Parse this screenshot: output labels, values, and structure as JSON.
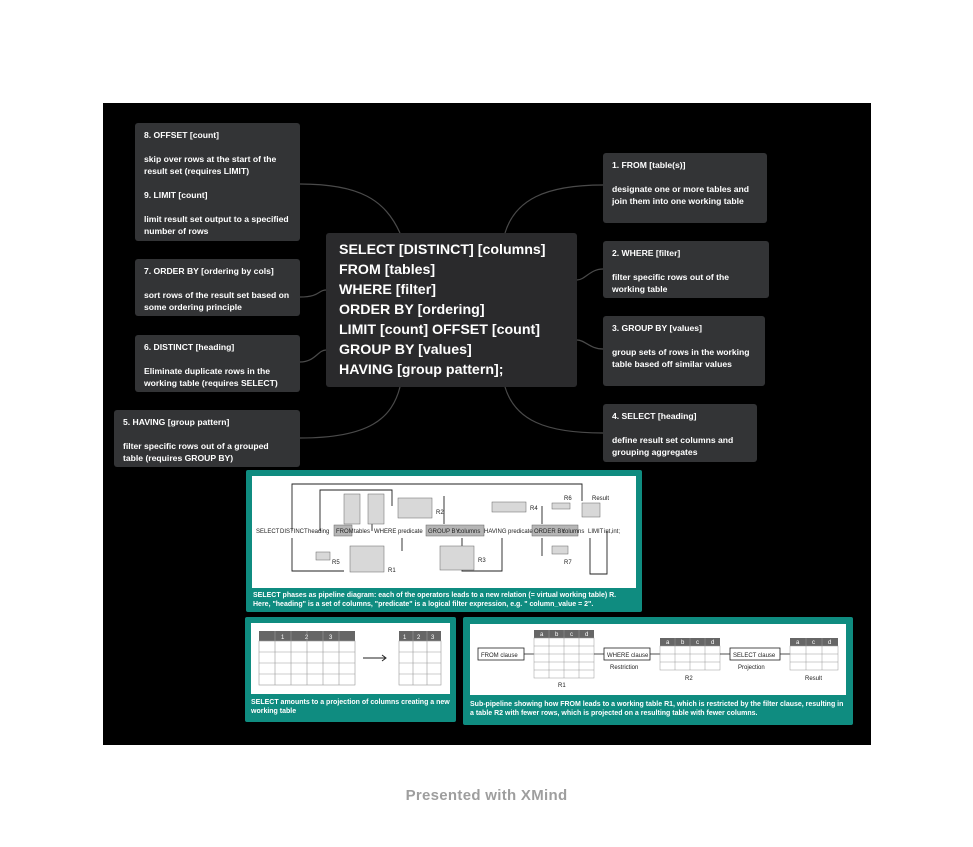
{
  "central": {
    "lines": [
      "SELECT [DISTINCT] [columns]",
      "FROM [tables]",
      "WHERE [filter]",
      "ORDER BY [ordering]",
      "LIMIT [count] OFFSET [count]",
      "GROUP BY [values]",
      "HAVING [group pattern];"
    ]
  },
  "nodes": {
    "offset": {
      "title": "8. OFFSET [count]",
      "desc": "skip over rows at the start of the result set (requires LIMIT)"
    },
    "limit": {
      "title": "9. LIMIT [count]",
      "desc": "limit result set output to a specified number of rows"
    },
    "orderby": {
      "title": "7. ORDER BY [ordering by cols]",
      "desc": "sort rows of the result set based on some ordering principle"
    },
    "distinct": {
      "title": "6. DISTINCT [heading]",
      "desc": "Eliminate duplicate rows in the working table (requires SELECT)"
    },
    "having": {
      "title": "5. HAVING [group pattern]",
      "desc": "filter specific rows out of a grouped table (requires GROUP BY)"
    },
    "from": {
      "title": "1. FROM [table(s)]",
      "desc": "designate one or more tables and join them into one working table"
    },
    "where": {
      "title": "2. WHERE [filter]",
      "desc": "filter specific rows out of the working table"
    },
    "groupby": {
      "title": "3.  GROUP BY [values]",
      "desc": "group sets of rows in the working table based off similar values"
    },
    "select": {
      "title": "4. SELECT [heading]",
      "desc": "define result set columns and grouping aggregates"
    }
  },
  "images": {
    "pipeline": {
      "caption": "SELECT phases as pipeline diagram: each of the operators leads to a new relation (= virtual working table) R. Here, \"heading\" is a set of columns, \"predicate\" is a logical filter expression, e.g. \" column_value = 2\".",
      "tokens": [
        "SELECT",
        "DISTINCT",
        "heading",
        "FROM",
        "tables",
        "WHERE",
        "predicate",
        "GROUP BY",
        "columns",
        "HAVING",
        "predicate",
        "ORDER BY",
        "columns",
        "LIMIT",
        "int,int;"
      ],
      "labels": [
        "R2",
        "R4",
        "R6",
        "Result",
        "R5",
        "R1",
        "R3",
        "R7"
      ]
    },
    "projection": {
      "caption": "SELECT amounts to a projection of columns creating a new working table",
      "left_headers": [
        "1",
        "2",
        "3"
      ],
      "right_headers": [
        "1",
        "2",
        "3"
      ]
    },
    "subpipeline": {
      "caption": "Sub-pipeline showing how FROM leads to a working table R1, which is restricted by the filter clause, resulting in a table R2 with fewer rows, which is projected on a resulting table with fewer columns.",
      "from_clause": "FROM clause",
      "where_clause": "WHERE clause",
      "select_clause": "SELECT clause",
      "restriction": "Restriction",
      "projection": "Projection",
      "r1": "R1",
      "r2": "R2",
      "result": "Result",
      "r1_headers": [
        "a",
        "b",
        "c",
        "d"
      ],
      "r2_headers": [
        "a",
        "b",
        "c",
        "d"
      ],
      "result_headers": [
        "a",
        "c",
        "d"
      ]
    }
  },
  "footer": "Presented with XMind"
}
